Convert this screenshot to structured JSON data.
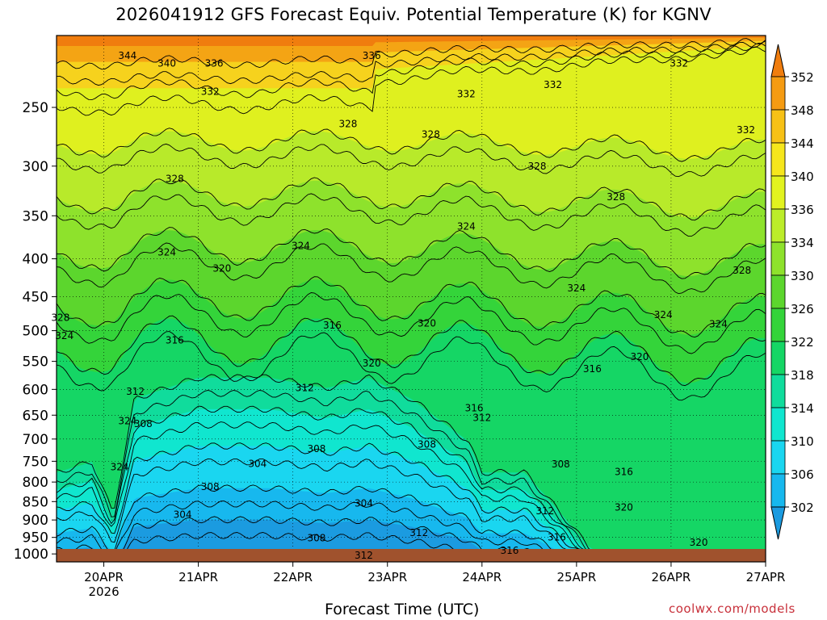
{
  "chart_data": {
    "type": "contour",
    "title": "2026041912 GFS Forecast Equiv. Potential Temperature (K) for KGNV",
    "xlabel": "Forecast Time (UTC)",
    "ylabel": "",
    "x_axis": {
      "range": [
        "2026-04-19T12:00Z",
        "2026-04-27T00:00Z"
      ],
      "ticks": [
        {
          "label": "20APR",
          "sublabel": "2026",
          "date": "2026-04-20T00:00Z"
        },
        {
          "label": "21APR",
          "date": "2026-04-21T00:00Z"
        },
        {
          "label": "22APR",
          "date": "2026-04-22T00:00Z"
        },
        {
          "label": "23APR",
          "date": "2026-04-23T00:00Z"
        },
        {
          "label": "24APR",
          "date": "2026-04-24T00:00Z"
        },
        {
          "label": "25APR",
          "date": "2026-04-25T00:00Z"
        },
        {
          "label": "26APR",
          "date": "2026-04-26T00:00Z"
        },
        {
          "label": "27APR",
          "date": "2026-04-27T00:00Z"
        }
      ]
    },
    "y_axis": {
      "unit": "hPa",
      "scale": "log",
      "inverted": true,
      "range": [
        1025,
        200
      ],
      "ticks": [
        250,
        300,
        350,
        400,
        450,
        500,
        550,
        600,
        650,
        700,
        750,
        800,
        850,
        900,
        950,
        1000
      ]
    },
    "colorbar": {
      "levels": [
        302,
        306,
        310,
        314,
        318,
        322,
        326,
        330,
        334,
        336,
        340,
        344,
        348,
        352
      ],
      "colors": [
        "#1b9be0",
        "#17b8ee",
        "#1ad6f0",
        "#10e6cf",
        "#10dc9c",
        "#15d665",
        "#34d43a",
        "#5cd62d",
        "#8ee22c",
        "#bced2a",
        "#e2f31f",
        "#f6e61c",
        "#f7c116",
        "#f59b12",
        "#f07d0e"
      ],
      "extend": "both"
    },
    "contour_labels": [
      {
        "text": "344",
        "time": "2026-04-20T06:00Z",
        "p": 213
      },
      {
        "text": "340",
        "time": "2026-04-20T16:00Z",
        "p": 218
      },
      {
        "text": "336",
        "time": "2026-04-21T04:00Z",
        "p": 218
      },
      {
        "text": "336",
        "time": "2026-04-22T20:00Z",
        "p": 213
      },
      {
        "text": "332",
        "time": "2026-04-21T03:00Z",
        "p": 238
      },
      {
        "text": "332",
        "time": "2026-04-23T20:00Z",
        "p": 240
      },
      {
        "text": "332",
        "time": "2026-04-24T18:00Z",
        "p": 233
      },
      {
        "text": "332",
        "time": "2026-04-26T02:00Z",
        "p": 218
      },
      {
        "text": "332",
        "time": "2026-04-26T19:00Z",
        "p": 268
      },
      {
        "text": "328",
        "time": "2026-04-22T14:00Z",
        "p": 263
      },
      {
        "text": "328",
        "time": "2026-04-23T11:00Z",
        "p": 272
      },
      {
        "text": "328",
        "time": "2026-04-20T18:00Z",
        "p": 312
      },
      {
        "text": "328",
        "time": "2026-04-24T14:00Z",
        "p": 300
      },
      {
        "text": "328",
        "time": "2026-04-25T10:00Z",
        "p": 330
      },
      {
        "text": "328",
        "time": "2026-04-26T18:00Z",
        "p": 415
      },
      {
        "text": "328",
        "time": "2026-04-19T13:00Z",
        "p": 480
      },
      {
        "text": "324",
        "time": "2026-04-20T16:00Z",
        "p": 392
      },
      {
        "text": "324",
        "time": "2026-04-22T02:00Z",
        "p": 384
      },
      {
        "text": "324",
        "time": "2026-04-23T20:00Z",
        "p": 362
      },
      {
        "text": "324",
        "time": "2026-04-25T00:00Z",
        "p": 438
      },
      {
        "text": "324",
        "time": "2026-04-25T22:00Z",
        "p": 476
      },
      {
        "text": "324",
        "time": "2026-04-26T12:00Z",
        "p": 490
      },
      {
        "text": "324",
        "time": "2026-04-19T14:00Z",
        "p": 508
      },
      {
        "text": "324",
        "time": "2026-04-20T06:00Z",
        "p": 662
      },
      {
        "text": "324",
        "time": "2026-04-20T04:00Z",
        "p": 764
      },
      {
        "text": "320",
        "time": "2026-04-21T06:00Z",
        "p": 412
      },
      {
        "text": "320",
        "time": "2026-04-23T10:00Z",
        "p": 489
      },
      {
        "text": "320",
        "time": "2026-04-22T20:00Z",
        "p": 553
      },
      {
        "text": "320",
        "time": "2026-04-25T16:00Z",
        "p": 542
      },
      {
        "text": "320",
        "time": "2026-04-25T12:00Z",
        "p": 866
      },
      {
        "text": "320",
        "time": "2026-04-26T07:00Z",
        "p": 965
      },
      {
        "text": "316",
        "time": "2026-04-20T18:00Z",
        "p": 515
      },
      {
        "text": "316",
        "time": "2026-04-22T10:00Z",
        "p": 492
      },
      {
        "text": "316",
        "time": "2026-04-25T04:00Z",
        "p": 563
      },
      {
        "text": "316",
        "time": "2026-04-23T22:00Z",
        "p": 636
      },
      {
        "text": "316",
        "time": "2026-04-25T12:00Z",
        "p": 775
      },
      {
        "text": "316",
        "time": "2026-04-24T19:00Z",
        "p": 950
      },
      {
        "text": "316",
        "time": "2026-04-24T07:00Z",
        "p": 990
      },
      {
        "text": "312",
        "time": "2026-04-20T08:00Z",
        "p": 604
      },
      {
        "text": "312",
        "time": "2026-04-22T03:00Z",
        "p": 597
      },
      {
        "text": "312",
        "time": "2026-04-24T00:00Z",
        "p": 655
      },
      {
        "text": "312",
        "time": "2026-04-24T16:00Z",
        "p": 875
      },
      {
        "text": "312",
        "time": "2026-04-23T08:00Z",
        "p": 937
      },
      {
        "text": "312",
        "time": "2026-04-22T18:00Z",
        "p": 1005
      },
      {
        "text": "308",
        "time": "2026-04-20T10:00Z",
        "p": 668
      },
      {
        "text": "308",
        "time": "2026-04-22T06:00Z",
        "p": 722
      },
      {
        "text": "308",
        "time": "2026-04-23T10:00Z",
        "p": 712
      },
      {
        "text": "308",
        "time": "2026-04-24T20:00Z",
        "p": 757
      },
      {
        "text": "308",
        "time": "2026-04-21T03:00Z",
        "p": 812
      },
      {
        "text": "308",
        "time": "2026-04-22T06:00Z",
        "p": 952
      },
      {
        "text": "304",
        "time": "2026-04-21T15:00Z",
        "p": 756
      },
      {
        "text": "304",
        "time": "2026-04-20T20:00Z",
        "p": 885
      },
      {
        "text": "304",
        "time": "2026-04-22T18:00Z",
        "p": 855
      }
    ]
  },
  "credit": "coolwx.com/models"
}
